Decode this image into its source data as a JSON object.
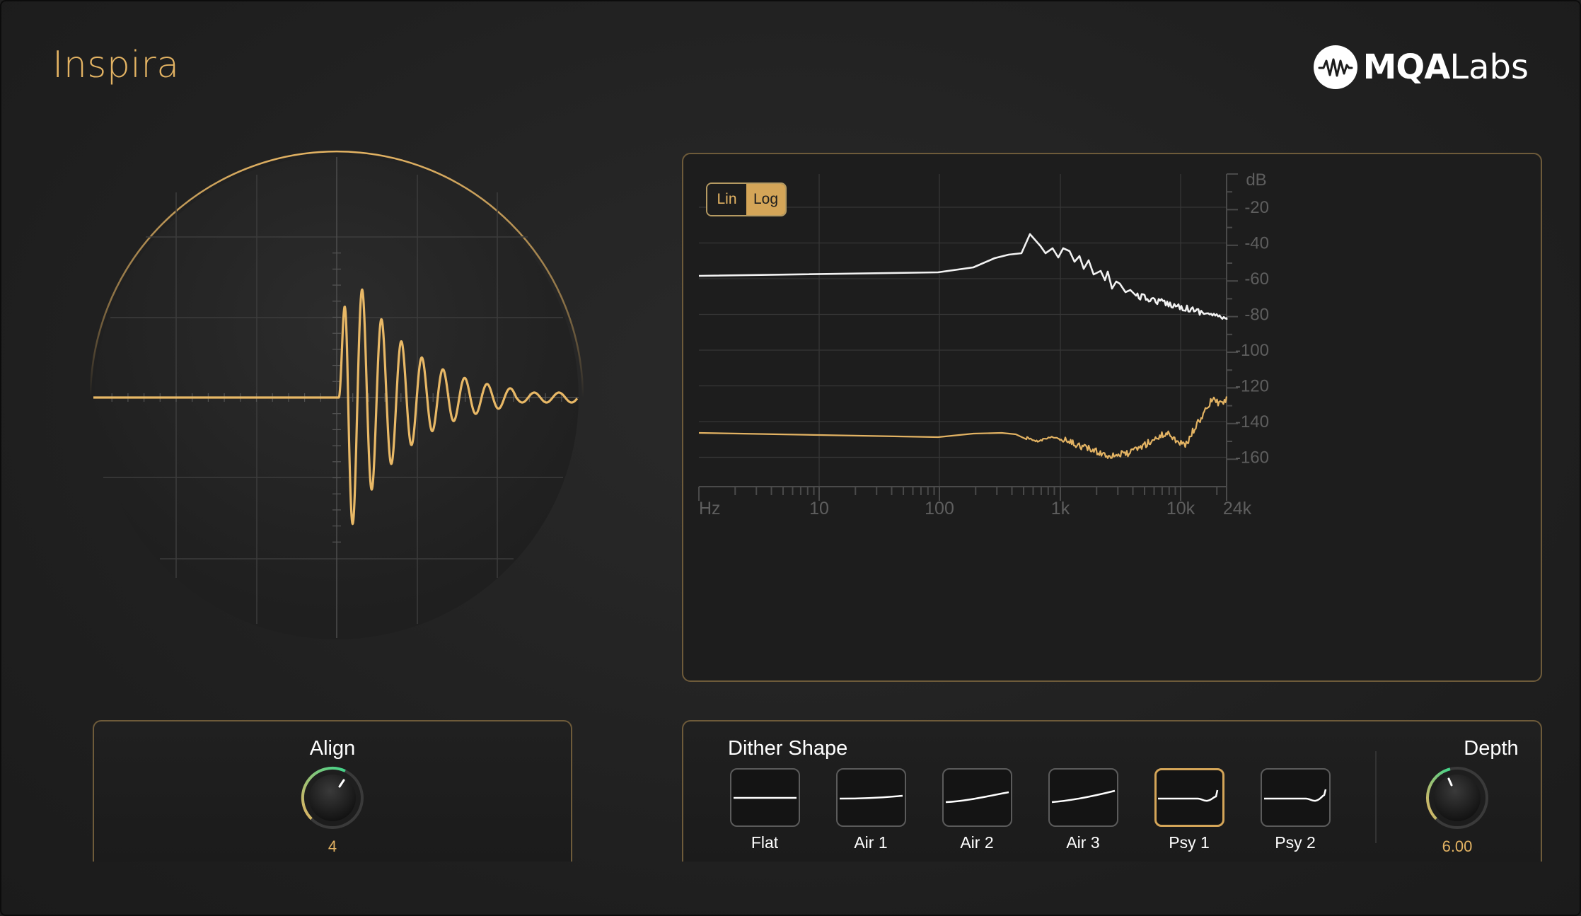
{
  "app": {
    "title": "Inspira"
  },
  "brand": {
    "name_bold": "MQA",
    "name_light": "Labs"
  },
  "spectrum": {
    "scale_toggle": {
      "options": [
        "Lin",
        "Log"
      ],
      "selected": "Log"
    },
    "y_unit": "dB",
    "y_ticks": [
      "-20",
      "-40",
      "-60",
      "-80",
      "-100",
      "-120",
      "-140",
      "-160"
    ],
    "x_unit": "Hz",
    "x_ticks": [
      "10",
      "100",
      "1k",
      "10k",
      "24k"
    ]
  },
  "align": {
    "title": "Align",
    "value": "4"
  },
  "dither": {
    "title": "Dither Shape",
    "options": [
      "Flat",
      "Air 1",
      "Air 2",
      "Air 3",
      "Psy 1",
      "Psy 2"
    ],
    "selected": "Psy 1"
  },
  "depth": {
    "title": "Depth",
    "value": "6.00"
  },
  "colors": {
    "accent": "#e3b363",
    "accent_dark": "#d4a558",
    "background": "#1f1f1f",
    "panel_border": "#6e5b3a",
    "signal_trace": "#ffffff",
    "noise_trace": "#e3b363"
  },
  "icons": {
    "brand_logo": "waveform-logo-icon",
    "align_knob": "rotary-knob-icon",
    "depth_knob": "rotary-knob-icon"
  }
}
